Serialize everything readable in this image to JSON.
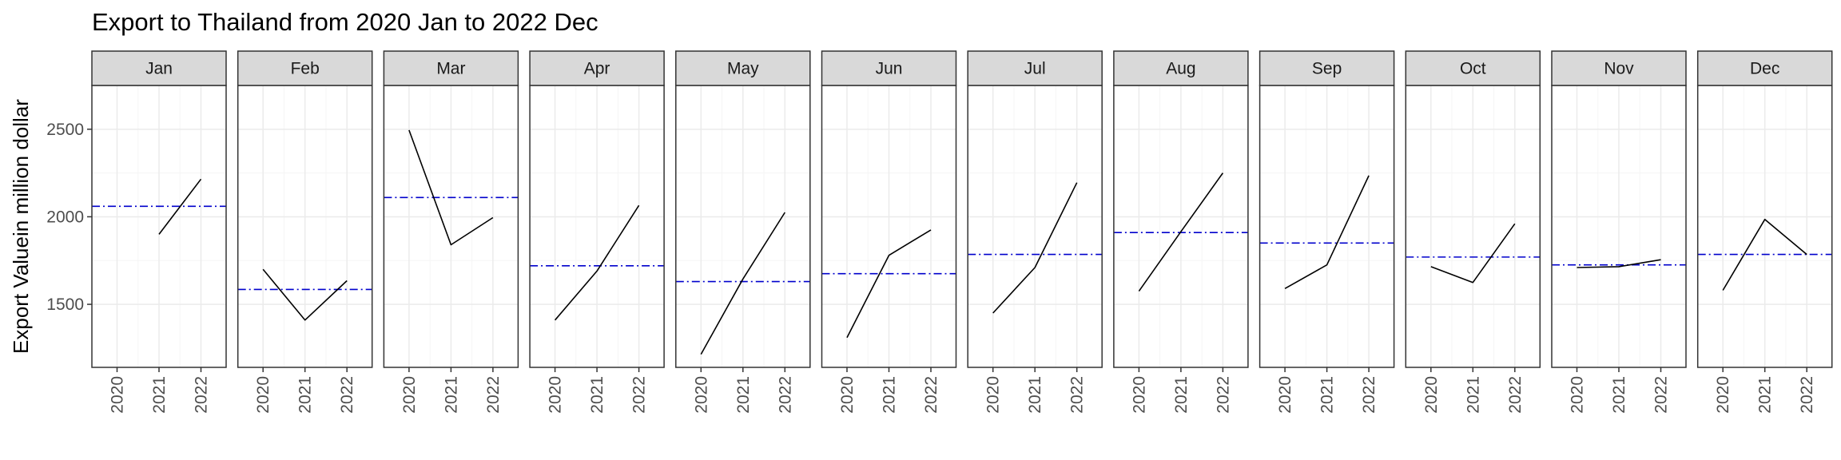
{
  "chart_data": {
    "type": "line",
    "title": "Export to Thailand from 2020 Jan to 2022 Dec",
    "xlabel": "",
    "ylabel": "Export Valuein million dollar",
    "x_ticks": [
      "2020",
      "2021",
      "2022"
    ],
    "y_ticks": [
      1500,
      2000,
      2500
    ],
    "ylim": [
      1140,
      2750
    ],
    "grid": true,
    "facets": [
      {
        "month": "Jan",
        "values": [
          null,
          1900,
          2215
        ],
        "mean": 2060
      },
      {
        "month": "Feb",
        "values": [
          1700,
          1410,
          1635
        ],
        "mean": 1585
      },
      {
        "month": "Mar",
        "values": [
          2495,
          1840,
          1995
        ],
        "mean": 2110
      },
      {
        "month": "Apr",
        "values": [
          1410,
          1690,
          2065
        ],
        "mean": 1720
      },
      {
        "month": "May",
        "values": [
          1215,
          1645,
          2025
        ],
        "mean": 1630
      },
      {
        "month": "Jun",
        "values": [
          1310,
          1780,
          1925
        ],
        "mean": 1675
      },
      {
        "month": "Jul",
        "values": [
          1450,
          1710,
          2195
        ],
        "mean": 1785
      },
      {
        "month": "Aug",
        "values": [
          1575,
          1915,
          2250
        ],
        "mean": 1910
      },
      {
        "month": "Sep",
        "values": [
          1590,
          1725,
          2235
        ],
        "mean": 1850
      },
      {
        "month": "Oct",
        "values": [
          1715,
          1625,
          1960
        ],
        "mean": 1770
      },
      {
        "month": "Nov",
        "values": [
          1710,
          1715,
          1755
        ],
        "mean": 1725
      },
      {
        "month": "Dec",
        "values": [
          1580,
          1985,
          1785
        ],
        "mean": 1785
      }
    ],
    "colors": {
      "series_line": "#000000",
      "mean_line": "#0000cc",
      "strip_fill": "#d9d9d9",
      "panel_border": "#333333",
      "grid_major": "#ebebeb",
      "grid_minor": "#f5f5f5"
    }
  }
}
